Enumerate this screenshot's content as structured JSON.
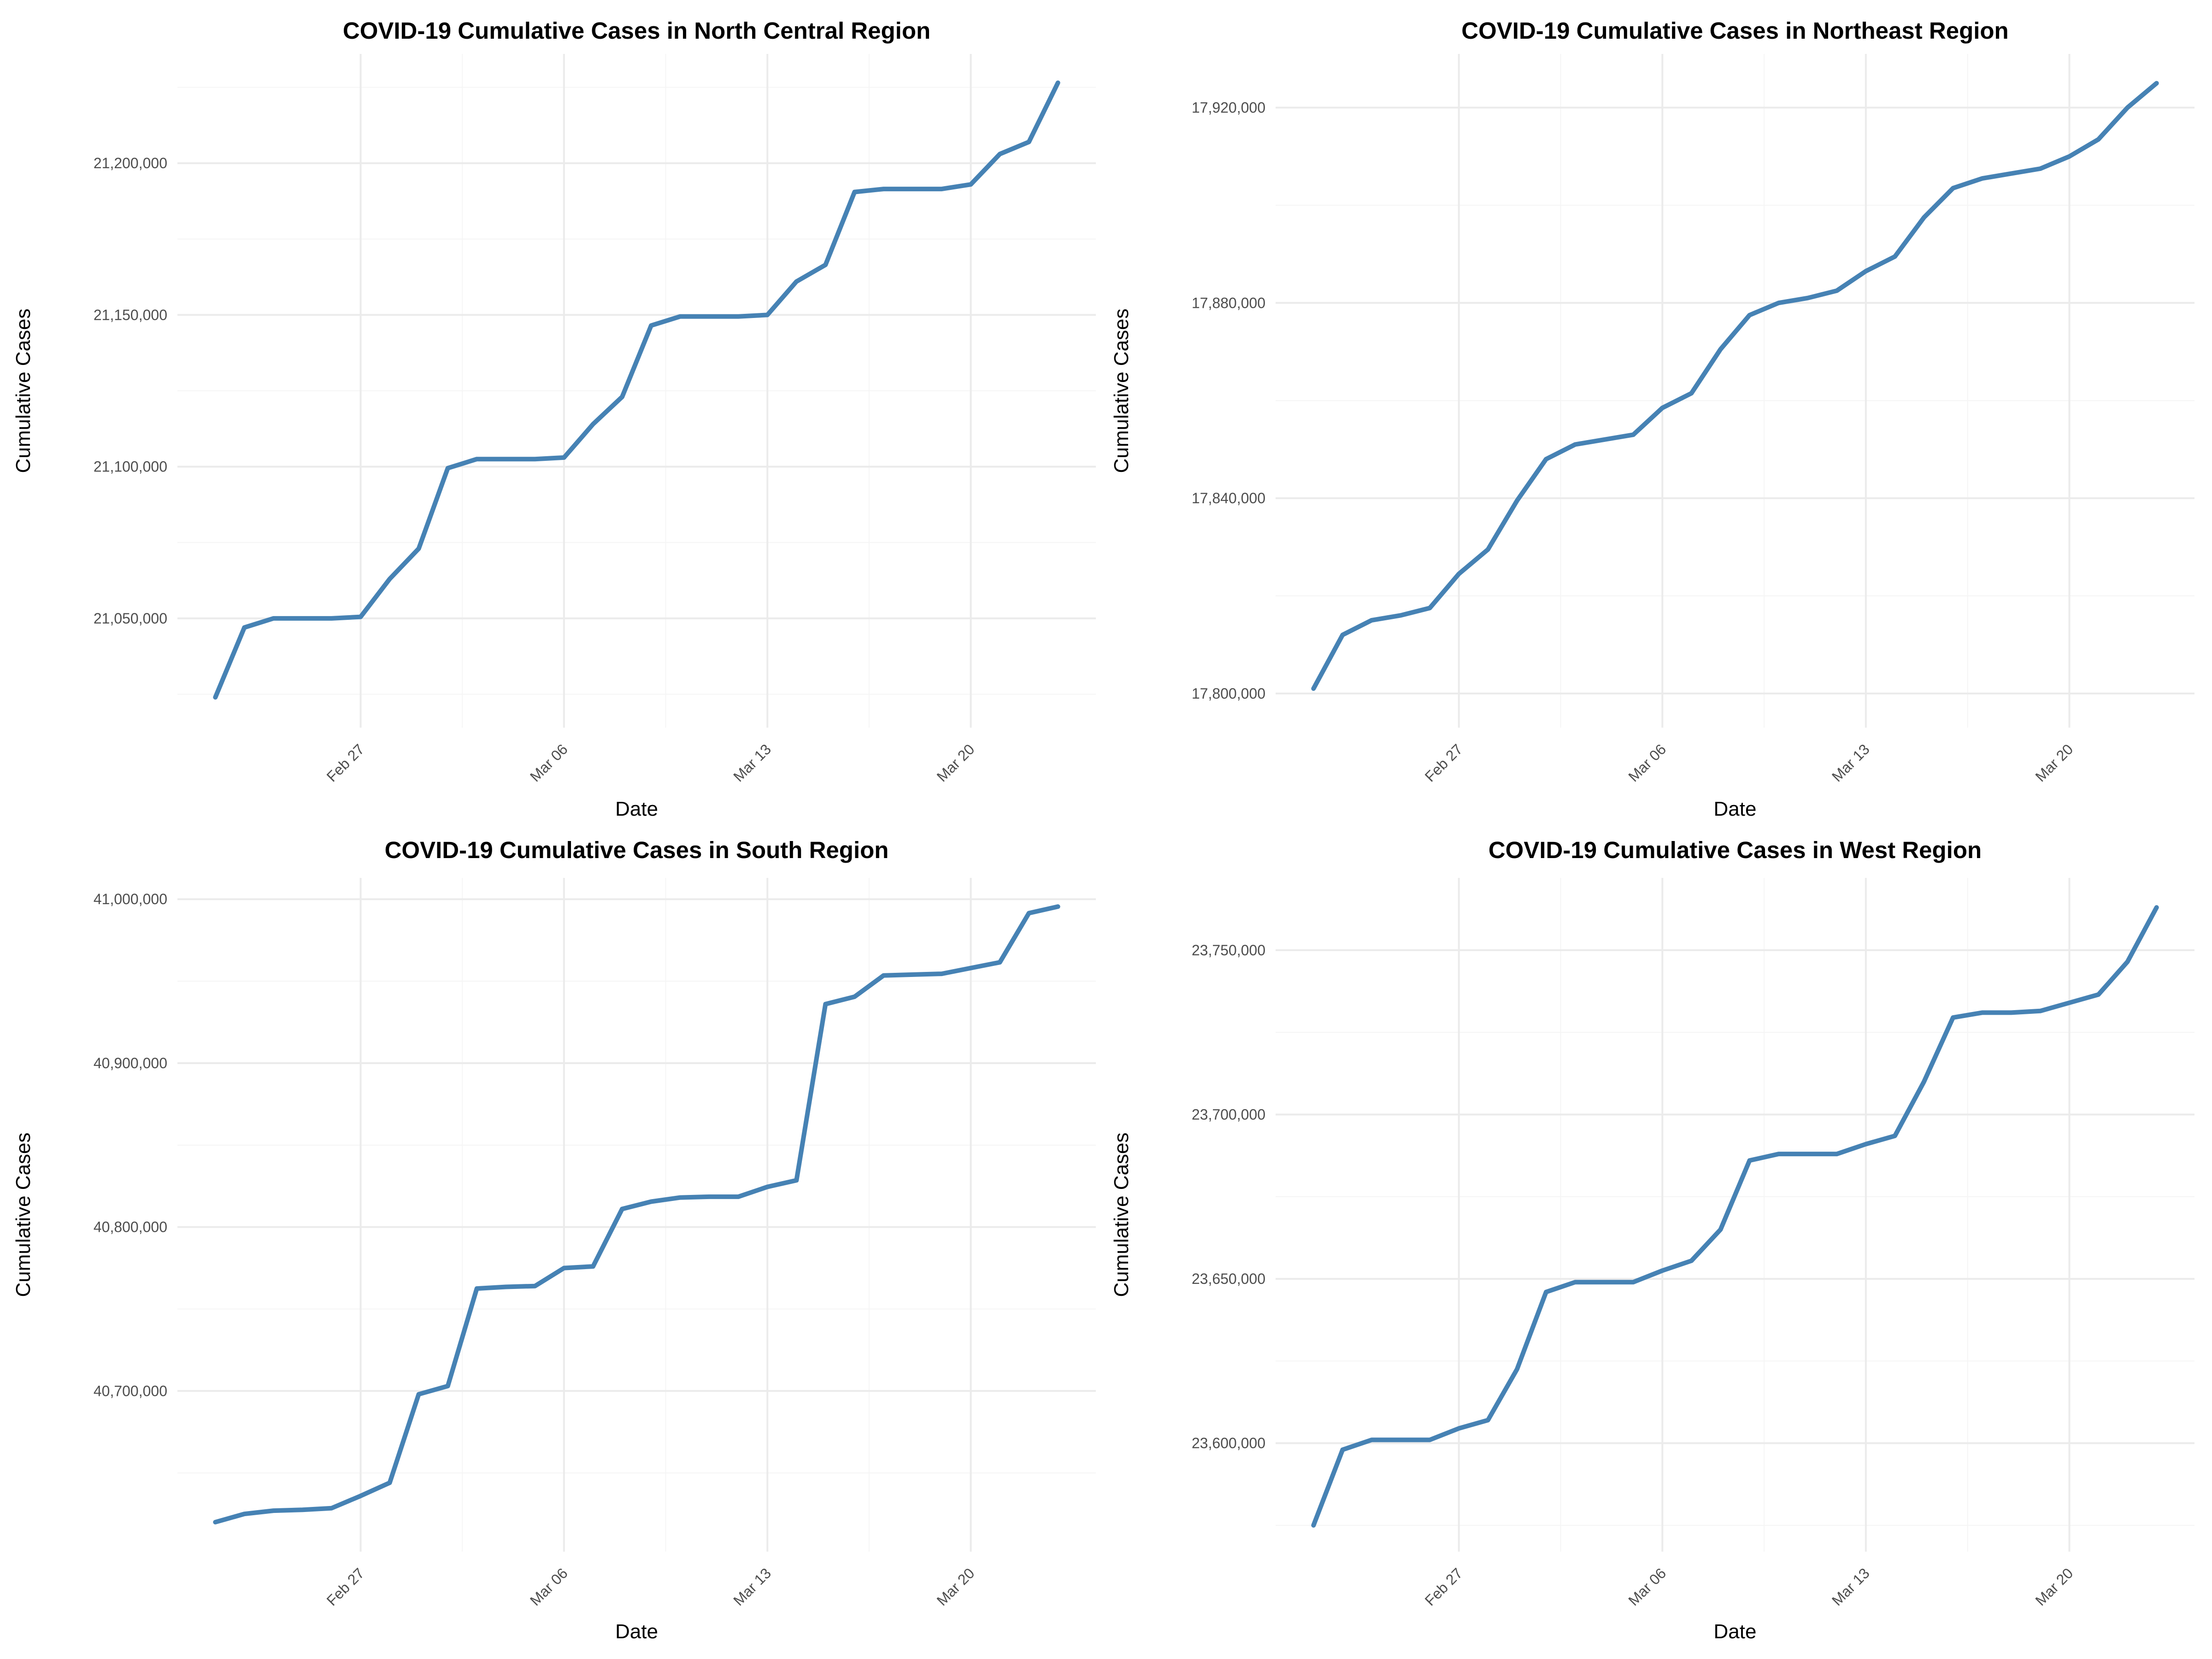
{
  "chart_data": [
    {
      "type": "line",
      "title": "COVID-19 Cumulative Cases in North Central Region",
      "xlabel": "Date",
      "ylabel": "Cumulative Cases",
      "x_ticks": [
        "Feb 27",
        "Mar 06",
        "Mar 13",
        "Mar 20"
      ],
      "y_ticks": [
        21050000,
        21100000,
        21150000,
        21200000
      ],
      "y_tick_labels": [
        "21,050,000",
        "21,100,000",
        "21,150,000",
        "21,200,000"
      ],
      "ylim": [
        21014000,
        21236000
      ],
      "color": "#4682b4",
      "grid": true,
      "series": [
        {
          "x": [
            "Feb 22",
            "Feb 23",
            "Feb 24",
            "Feb 25",
            "Feb 26",
            "Feb 27",
            "Feb 28",
            "Mar 01",
            "Mar 02",
            "Mar 03",
            "Mar 04",
            "Mar 05",
            "Mar 06",
            "Mar 07",
            "Mar 08",
            "Mar 09",
            "Mar 10",
            "Mar 11",
            "Mar 12",
            "Mar 13",
            "Mar 14",
            "Mar 15",
            "Mar 16",
            "Mar 17",
            "Mar 18",
            "Mar 19",
            "Mar 20",
            "Mar 21",
            "Mar 22",
            "Mar 23"
          ],
          "y": [
            21024000,
            21047000,
            21050000,
            21050000,
            21050000,
            21050500,
            21063000,
            21073000,
            21099500,
            21102500,
            21102500,
            21102500,
            21103000,
            21114000,
            21123000,
            21146500,
            21149500,
            21149500,
            21149500,
            21150000,
            21161000,
            21166500,
            21190500,
            21191500,
            21191500,
            21191500,
            21193000,
            21203000,
            21207000,
            21226500
          ]
        }
      ]
    },
    {
      "type": "line",
      "title": "COVID-19 Cumulative Cases in Northeast Region",
      "xlabel": "Date",
      "ylabel": "Cumulative Cases",
      "x_ticks": [
        "Feb 27",
        "Mar 06",
        "Mar 13",
        "Mar 20"
      ],
      "y_ticks": [
        17800000,
        17840000,
        17880000,
        17920000
      ],
      "y_tick_labels": [
        "17,800,000",
        "17,840,000",
        "17,880,000",
        "17,920,000"
      ],
      "ylim": [
        17793000,
        17931000
      ],
      "color": "#4682b4",
      "grid": true,
      "series": [
        {
          "x": [
            "Feb 22",
            "Feb 23",
            "Feb 24",
            "Feb 25",
            "Feb 26",
            "Feb 27",
            "Feb 28",
            "Mar 01",
            "Mar 02",
            "Mar 03",
            "Mar 04",
            "Mar 05",
            "Mar 06",
            "Mar 07",
            "Mar 08",
            "Mar 09",
            "Mar 10",
            "Mar 11",
            "Mar 12",
            "Mar 13",
            "Mar 14",
            "Mar 15",
            "Mar 16",
            "Mar 17",
            "Mar 18",
            "Mar 19",
            "Mar 20",
            "Mar 21",
            "Mar 22",
            "Mar 23"
          ],
          "y": [
            17801000,
            17812000,
            17815000,
            17816000,
            17817500,
            17824500,
            17829500,
            17839500,
            17848000,
            17851000,
            17852000,
            17853000,
            17858500,
            17861500,
            17870500,
            17877500,
            17880000,
            17881000,
            17882500,
            17886500,
            17889500,
            17897500,
            17903500,
            17905500,
            17906500,
            17907500,
            17910000,
            17913500,
            17920000,
            17925000
          ]
        }
      ]
    },
    {
      "type": "line",
      "title": "COVID-19 Cumulative Cases in South Region",
      "xlabel": "Date",
      "ylabel": "Cumulative Cases",
      "x_ticks": [
        "Feb 27",
        "Mar 06",
        "Mar 13",
        "Mar 20"
      ],
      "y_ticks": [
        40700000,
        40800000,
        40900000,
        41000000
      ],
      "y_tick_labels": [
        "40,700,000",
        "40,800,000",
        "40,900,000",
        "41,000,000"
      ],
      "ylim": [
        40602000,
        41013000
      ],
      "color": "#4682b4",
      "grid": true,
      "series": [
        {
          "x": [
            "Feb 22",
            "Feb 23",
            "Feb 24",
            "Feb 25",
            "Feb 26",
            "Feb 27",
            "Feb 28",
            "Mar 01",
            "Mar 02",
            "Mar 03",
            "Mar 04",
            "Mar 05",
            "Mar 06",
            "Mar 07",
            "Mar 08",
            "Mar 09",
            "Mar 10",
            "Mar 11",
            "Mar 12",
            "Mar 13",
            "Mar 14",
            "Mar 15",
            "Mar 16",
            "Mar 17",
            "Mar 18",
            "Mar 19",
            "Mar 20",
            "Mar 21",
            "Mar 22",
            "Mar 23"
          ],
          "y": [
            40620000,
            40625000,
            40627000,
            40627500,
            40628500,
            40636000,
            40644000,
            40698000,
            40703000,
            40762500,
            40763500,
            40764000,
            40775000,
            40776000,
            40811000,
            40815500,
            40818000,
            40818500,
            40818500,
            40824500,
            40828500,
            40936000,
            40940500,
            40953500,
            40954000,
            40954500,
            40958000,
            40961500,
            40991500,
            40995500
          ]
        }
      ]
    },
    {
      "type": "line",
      "title": "COVID-19 Cumulative Cases in West Region",
      "xlabel": "Date",
      "ylabel": "Cumulative Cases",
      "x_ticks": [
        "Feb 27",
        "Mar 06",
        "Mar 13",
        "Mar 20"
      ],
      "y_ticks": [
        23600000,
        23650000,
        23700000,
        23750000
      ],
      "y_tick_labels": [
        "23,600,000",
        "23,650,000",
        "23,700,000",
        "23,750,000"
      ],
      "ylim": [
        23567000,
        23772000
      ],
      "color": "#4682b4",
      "grid": true,
      "series": [
        {
          "x": [
            "Feb 22",
            "Feb 23",
            "Feb 24",
            "Feb 25",
            "Feb 26",
            "Feb 27",
            "Feb 28",
            "Mar 01",
            "Mar 02",
            "Mar 03",
            "Mar 04",
            "Mar 05",
            "Mar 06",
            "Mar 07",
            "Mar 08",
            "Mar 09",
            "Mar 10",
            "Mar 11",
            "Mar 12",
            "Mar 13",
            "Mar 14",
            "Mar 15",
            "Mar 16",
            "Mar 17",
            "Mar 18",
            "Mar 19",
            "Mar 20",
            "Mar 21",
            "Mar 22",
            "Mar 23"
          ],
          "y": [
            23575000,
            23598000,
            23601000,
            23601000,
            23601000,
            23604500,
            23607000,
            23622500,
            23646000,
            23649000,
            23649000,
            23649000,
            23652500,
            23655500,
            23665000,
            23686000,
            23688000,
            23688000,
            23688000,
            23691000,
            23693500,
            23710000,
            23729500,
            23731000,
            23731000,
            23731500,
            23734000,
            23736500,
            23746500,
            23763000
          ]
        }
      ]
    }
  ]
}
